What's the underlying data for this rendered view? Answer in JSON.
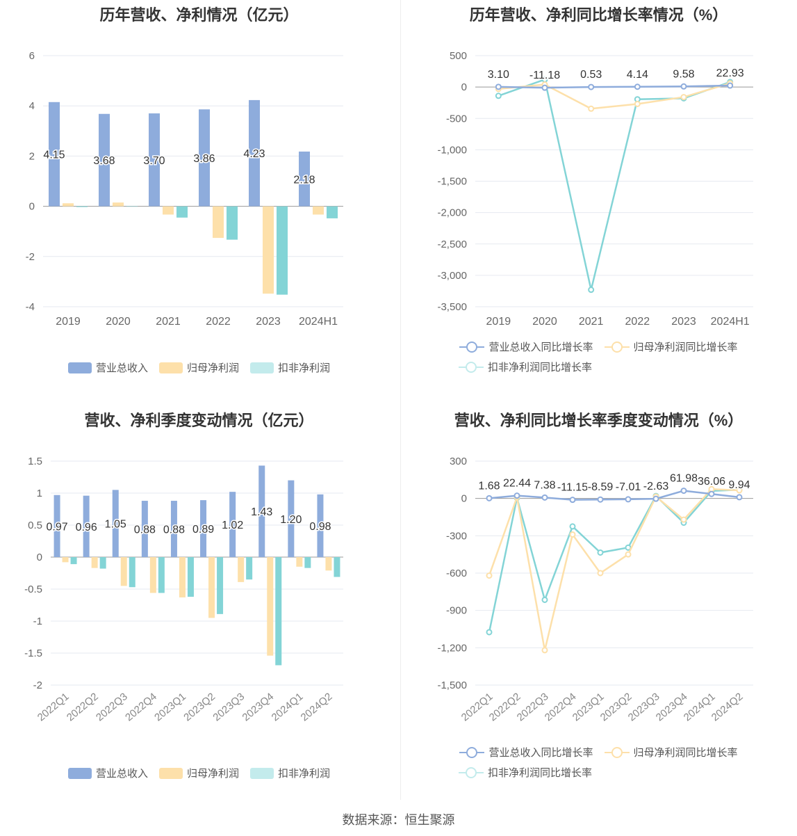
{
  "source": "数据来源：恒生聚源",
  "colors": {
    "revenue": "#8eacdc",
    "parent_profit": "#fde0aa",
    "deducted_profit": "#83d4d6"
  },
  "chart_data": [
    {
      "id": "annual_values",
      "type": "bar",
      "title": "历年营收、净利情况（亿元）",
      "categories": [
        "2019",
        "2020",
        "2021",
        "2022",
        "2023",
        "2024H1"
      ],
      "series": [
        {
          "name": "营业总收入",
          "values": [
            4.15,
            3.68,
            3.7,
            3.86,
            4.23,
            2.18
          ],
          "labels": [
            "4.15",
            "3.68",
            "3.70",
            "3.86",
            "4.23",
            "2.18"
          ]
        },
        {
          "name": "归母净利润",
          "values": [
            0.12,
            0.15,
            -0.33,
            -1.26,
            -3.48,
            -0.33
          ]
        },
        {
          "name": "扣非净利润",
          "values": [
            -0.03,
            0.0,
            -0.45,
            -1.33,
            -3.52,
            -0.48
          ]
        }
      ],
      "ylim": [
        -4,
        6
      ],
      "yticks": [
        "6",
        "4",
        "2",
        "0",
        "-2",
        "-4"
      ],
      "ytick_values": [
        6,
        4,
        2,
        0,
        -2,
        -4
      ],
      "grid": true,
      "legend_position": "bottom"
    },
    {
      "id": "annual_growth",
      "type": "line",
      "title": "历年营收、净利同比增长率情况（%）",
      "categories": [
        "2019",
        "2020",
        "2021",
        "2022",
        "2023",
        "2024H1"
      ],
      "series": [
        {
          "name": "营业总收入同比增长率",
          "values": [
            3.1,
            -11.18,
            0.53,
            4.14,
            9.58,
            22.93
          ],
          "labels": [
            "3.10",
            "-11.18",
            "0.53",
            "4.14",
            "9.58",
            "22.93"
          ]
        },
        {
          "name": "归母净利润同比增长率",
          "values": [
            -30,
            40,
            -345,
            -270,
            -160,
            60
          ]
        },
        {
          "name": "扣非净利润同比增长率",
          "values": [
            -140,
            120,
            -3230,
            -195,
            -180,
            80
          ]
        }
      ],
      "ylim": [
        -3500,
        500
      ],
      "yticks": [
        "500",
        "0",
        "-500",
        "-1,000",
        "-1,500",
        "-2,000",
        "-2,500",
        "-3,000",
        "-3,500"
      ],
      "ytick_values": [
        500,
        0,
        -500,
        -1000,
        -1500,
        -2000,
        -2500,
        -3000,
        -3500
      ],
      "grid": true,
      "legend_position": "bottom"
    },
    {
      "id": "quarterly_values",
      "type": "bar",
      "title": "营收、净利季度变动情况（亿元）",
      "categories": [
        "2022Q1",
        "2022Q2",
        "2022Q3",
        "2022Q4",
        "2023Q1",
        "2023Q2",
        "2023Q3",
        "2023Q4",
        "2024Q1",
        "2024Q2"
      ],
      "series": [
        {
          "name": "营业总收入",
          "values": [
            0.97,
            0.96,
            1.05,
            0.88,
            0.88,
            0.89,
            1.02,
            1.43,
            1.2,
            0.98
          ],
          "labels": [
            "0.97",
            "0.96",
            "1.05",
            "0.88",
            "0.88",
            "0.89",
            "1.02",
            "1.43",
            "1.20",
            "0.98"
          ]
        },
        {
          "name": "归母净利润",
          "values": [
            -0.08,
            -0.17,
            -0.45,
            -0.56,
            -0.63,
            -0.95,
            -0.39,
            -1.54,
            -0.15,
            -0.21
          ]
        },
        {
          "name": "扣非净利润",
          "values": [
            -0.11,
            -0.18,
            -0.47,
            -0.56,
            -0.62,
            -0.89,
            -0.35,
            -1.69,
            -0.17,
            -0.31
          ]
        }
      ],
      "ylim": [
        -2,
        1.5
      ],
      "yticks": [
        "1.5",
        "1",
        "0.5",
        "0",
        "-0.5",
        "-1",
        "-1.5",
        "-2"
      ],
      "ytick_values": [
        1.5,
        1,
        0.5,
        0,
        -0.5,
        -1,
        -1.5,
        -2
      ],
      "grid": true,
      "legend_position": "bottom"
    },
    {
      "id": "quarterly_growth",
      "type": "line",
      "title": "营收、净利同比增长率季度变动情况（%）",
      "categories": [
        "2022Q1",
        "2022Q2",
        "2022Q3",
        "2022Q4",
        "2023Q1",
        "2023Q2",
        "2023Q3",
        "2023Q4",
        "2024Q1",
        "2024Q2"
      ],
      "series": [
        {
          "name": "营业总收入同比增长率",
          "values": [
            1.68,
            22.44,
            7.38,
            -11.15,
            -8.59,
            -7.01,
            -2.63,
            61.98,
            36.06,
            9.94
          ],
          "labels": [
            "1.68",
            "22.44",
            "7.38",
            "-11.15",
            "-8.59",
            "-7.01",
            "-2.63",
            "61.98",
            "36.06",
            "9.94"
          ]
        },
        {
          "name": "归母净利润同比增长率",
          "values": [
            -620,
            10,
            -1220,
            -290,
            -600,
            -450,
            15,
            -170,
            75,
            65
          ]
        },
        {
          "name": "扣非净利润同比增长率",
          "values": [
            -1075,
            5,
            -815,
            -225,
            -435,
            -395,
            20,
            -195,
            60,
            70
          ]
        }
      ],
      "ylim": [
        -1500,
        300
      ],
      "yticks": [
        "300",
        "0",
        "-300",
        "-600",
        "-900",
        "-1,200",
        "-1,500"
      ],
      "ytick_values": [
        300,
        0,
        -300,
        -600,
        -900,
        -1200,
        -1500
      ],
      "grid": true,
      "legend_position": "bottom"
    }
  ]
}
